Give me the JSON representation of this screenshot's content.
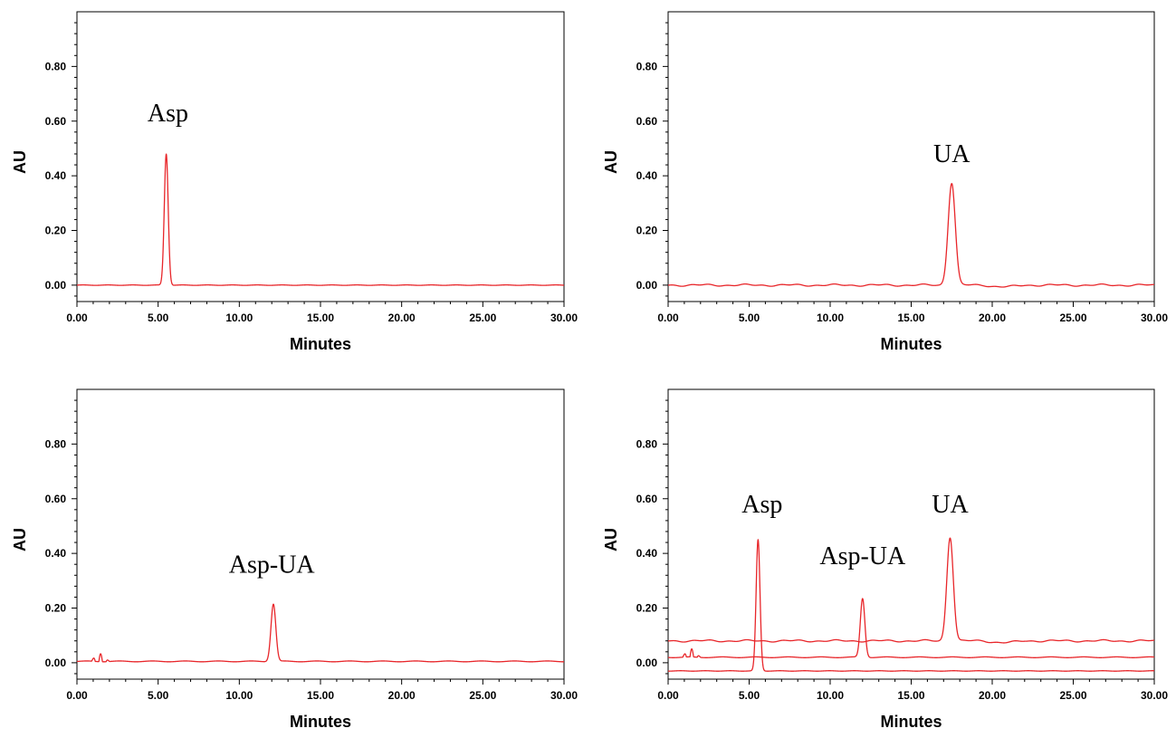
{
  "chart_data": [
    {
      "type": "line",
      "xlabel": "Minutes",
      "ylabel": "AU",
      "xlim": [
        0,
        30
      ],
      "ylim": [
        -0.06,
        1.0
      ],
      "x_ticks": [
        "0.00",
        "5.00",
        "10.00",
        "15.00",
        "20.00",
        "25.00",
        "30.00"
      ],
      "y_ticks": [
        "0.00",
        "0.20",
        "0.40",
        "0.60",
        "0.80"
      ],
      "line_color": "#e8262a",
      "series": [
        {
          "baseline": 0.0,
          "noise": "flat",
          "peaks": [
            {
              "x": 5.5,
              "height": 0.48,
              "width": 0.12
            }
          ]
        }
      ],
      "annotations": [
        {
          "text": "Asp",
          "x": 5.6,
          "y": 0.6
        }
      ]
    },
    {
      "type": "line",
      "xlabel": "Minutes",
      "ylabel": "AU",
      "xlim": [
        0,
        30
      ],
      "ylim": [
        -0.06,
        1.0
      ],
      "x_ticks": [
        "0.00",
        "5.00",
        "10.00",
        "15.00",
        "20.00",
        "25.00",
        "30.00"
      ],
      "y_ticks": [
        "0.00",
        "0.20",
        "0.40",
        "0.60",
        "0.80"
      ],
      "line_color": "#e8262a",
      "series": [
        {
          "baseline": 0.0,
          "noise": "wavy",
          "peaks": [
            {
              "x": 17.5,
              "height": 0.375,
              "width": 0.22
            }
          ]
        }
      ],
      "annotations": [
        {
          "text": "UA",
          "x": 17.5,
          "y": 0.45
        }
      ]
    },
    {
      "type": "line",
      "xlabel": "Minutes",
      "ylabel": "AU",
      "xlim": [
        0,
        30
      ],
      "ylim": [
        -0.06,
        1.0
      ],
      "x_ticks": [
        "0.00",
        "5.00",
        "10.00",
        "15.00",
        "20.00",
        "25.00",
        "30.00"
      ],
      "y_ticks": [
        "0.00",
        "0.20",
        "0.40",
        "0.60",
        "0.80"
      ],
      "line_color": "#e8262a",
      "series": [
        {
          "baseline": 0.005,
          "noise": "early-spikes",
          "peaks": [
            {
              "x": 12.1,
              "height": 0.21,
              "width": 0.15
            }
          ]
        }
      ],
      "annotations": [
        {
          "text": "Asp-UA",
          "x": 12.0,
          "y": 0.33
        }
      ]
    },
    {
      "type": "line",
      "xlabel": "Minutes",
      "ylabel": "AU",
      "xlim": [
        0,
        30
      ],
      "ylim": [
        -0.06,
        1.0
      ],
      "x_ticks": [
        "0.00",
        "5.00",
        "10.00",
        "15.00",
        "20.00",
        "25.00",
        "30.00"
      ],
      "y_ticks": [
        "0.00",
        "0.20",
        "0.40",
        "0.60",
        "0.80"
      ],
      "line_color": "#e8262a",
      "series": [
        {
          "baseline": 0.08,
          "noise": "wavy",
          "peaks": [
            {
              "x": 17.4,
              "height": 0.38,
              "width": 0.2
            }
          ]
        },
        {
          "baseline": 0.02,
          "noise": "early-spikes",
          "peaks": [
            {
              "x": 12.0,
              "height": 0.215,
              "width": 0.14
            }
          ]
        },
        {
          "baseline": -0.03,
          "noise": "flat",
          "peaks": [
            {
              "x": 5.55,
              "height": 0.48,
              "width": 0.12
            }
          ]
        }
      ],
      "annotations": [
        {
          "text": "Asp",
          "x": 5.8,
          "y": 0.55
        },
        {
          "text": "Asp-UA",
          "x": 12.0,
          "y": 0.36
        },
        {
          "text": "UA",
          "x": 17.4,
          "y": 0.55
        }
      ]
    }
  ]
}
